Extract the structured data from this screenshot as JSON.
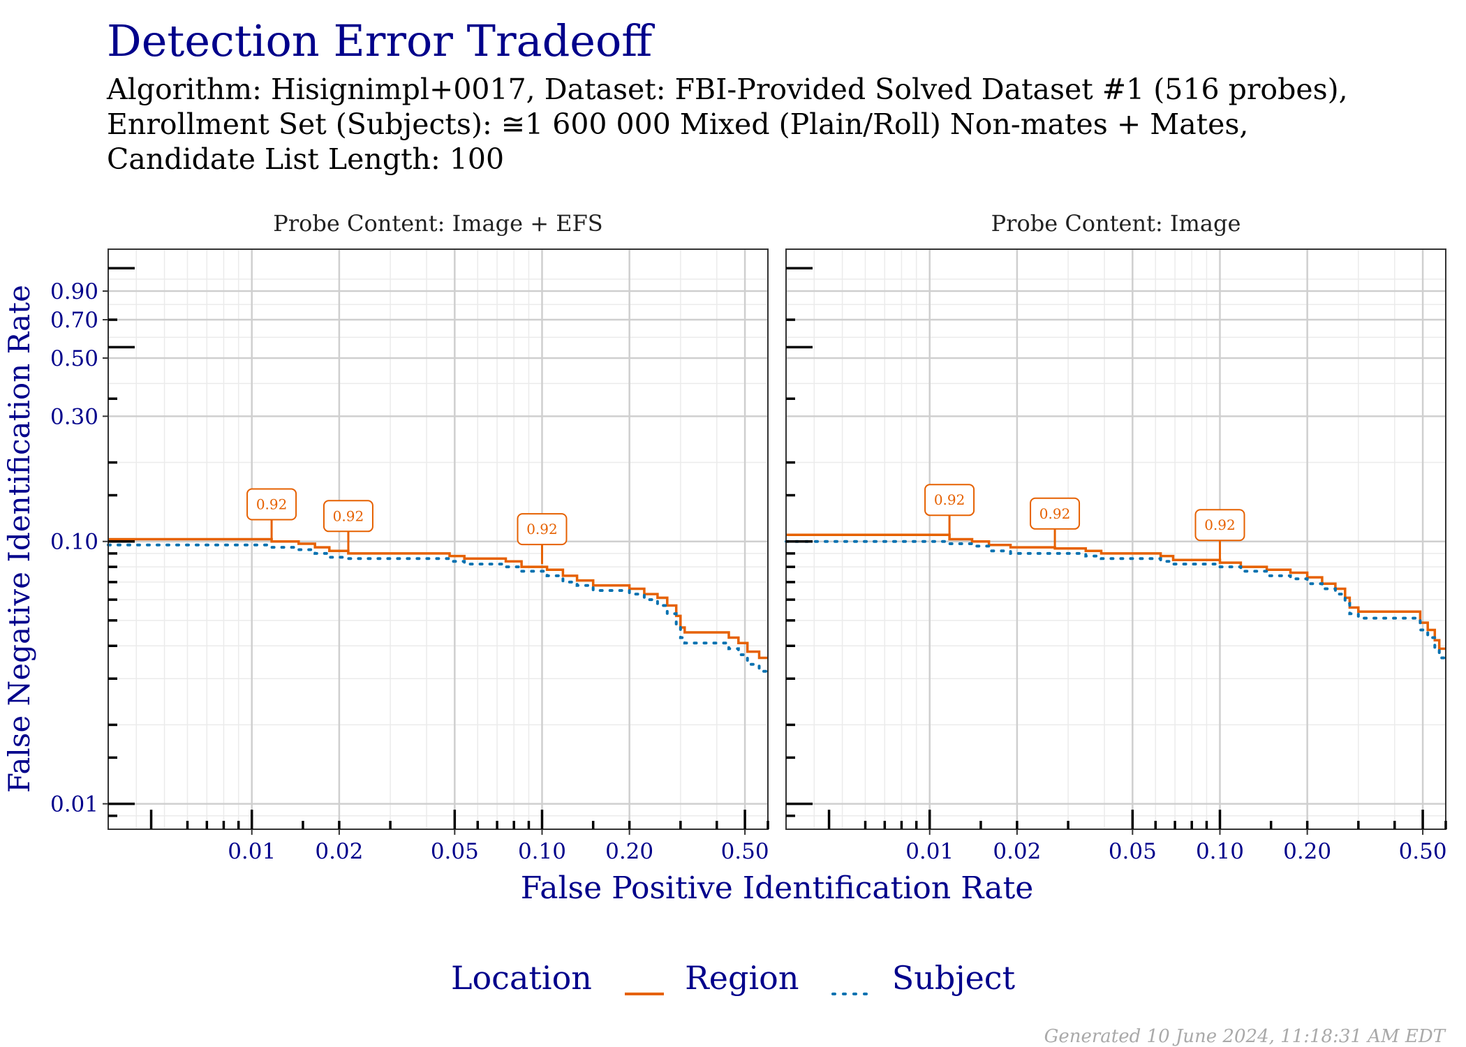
{
  "title": "Detection Error Tradeoff",
  "subtitle_lines": [
    "Algorithm: Hisignimpl+0017, Dataset: FBI-Provided Solved Dataset #1 (516 probes),",
    "Enrollment Set (Subjects):  ≅1 600 000 Mixed (Plain/Roll) Non-mates + Mates,",
    "Candidate List Length: 100"
  ],
  "footer": "Generated 10 June 2024, 11:18:31 AM EDT",
  "legend": {
    "title": "Location",
    "items": [
      {
        "label": "Region",
        "color": "#e66101",
        "style": "solid"
      },
      {
        "label": "Subject",
        "color": "#0571b0",
        "style": "dotted"
      }
    ]
  },
  "chart_data": [
    {
      "type": "line",
      "panel_title": "Probe Content: Image + EFS",
      "xlabel": "False Positive Identification Rate",
      "ylabel": "False Negative Identification Rate",
      "x_scale": "log",
      "y_scale": "log",
      "xlim": [
        0.0032,
        0.6
      ],
      "ylim": [
        0.008,
        1.3
      ],
      "x_ticks": [
        "0.01",
        "0.02",
        "0.05",
        "0.10",
        "0.20",
        "0.50"
      ],
      "y_ticks": [
        "0.01",
        "0.10",
        "0.30",
        "0.50",
        "0.70",
        "0.90"
      ],
      "grid": true,
      "series": [
        {
          "name": "Region",
          "color": "#e66101",
          "points": [
            [
              0.0032,
              0.102
            ],
            [
              0.0117,
              0.102
            ],
            [
              0.0117,
              0.1
            ],
            [
              0.0145,
              0.1
            ],
            [
              0.0145,
              0.098
            ],
            [
              0.0165,
              0.098
            ],
            [
              0.0165,
              0.095
            ],
            [
              0.0185,
              0.095
            ],
            [
              0.0185,
              0.092
            ],
            [
              0.0215,
              0.092
            ],
            [
              0.0215,
              0.09
            ],
            [
              0.048,
              0.09
            ],
            [
              0.048,
              0.088
            ],
            [
              0.054,
              0.088
            ],
            [
              0.054,
              0.086
            ],
            [
              0.075,
              0.086
            ],
            [
              0.075,
              0.084
            ],
            [
              0.085,
              0.084
            ],
            [
              0.085,
              0.08
            ],
            [
              0.104,
              0.08
            ],
            [
              0.104,
              0.078
            ],
            [
              0.118,
              0.078
            ],
            [
              0.118,
              0.074
            ],
            [
              0.132,
              0.074
            ],
            [
              0.132,
              0.071
            ],
            [
              0.15,
              0.071
            ],
            [
              0.15,
              0.068
            ],
            [
              0.2,
              0.068
            ],
            [
              0.2,
              0.066
            ],
            [
              0.225,
              0.066
            ],
            [
              0.225,
              0.063
            ],
            [
              0.25,
              0.063
            ],
            [
              0.25,
              0.061
            ],
            [
              0.27,
              0.061
            ],
            [
              0.27,
              0.057
            ],
            [
              0.29,
              0.057
            ],
            [
              0.29,
              0.052
            ],
            [
              0.3,
              0.052
            ],
            [
              0.3,
              0.047
            ],
            [
              0.31,
              0.047
            ],
            [
              0.31,
              0.045
            ],
            [
              0.44,
              0.045
            ],
            [
              0.44,
              0.043
            ],
            [
              0.475,
              0.043
            ],
            [
              0.475,
              0.041
            ],
            [
              0.51,
              0.041
            ],
            [
              0.51,
              0.038
            ],
            [
              0.56,
              0.038
            ],
            [
              0.56,
              0.036
            ],
            [
              0.6,
              0.036
            ]
          ]
        },
        {
          "name": "Subject",
          "color": "#0571b0",
          "points": [
            [
              0.0032,
              0.097
            ],
            [
              0.0117,
              0.097
            ],
            [
              0.0117,
              0.095
            ],
            [
              0.0145,
              0.095
            ],
            [
              0.0145,
              0.093
            ],
            [
              0.0165,
              0.093
            ],
            [
              0.0165,
              0.09
            ],
            [
              0.0185,
              0.09
            ],
            [
              0.0185,
              0.087
            ],
            [
              0.0215,
              0.087
            ],
            [
              0.0215,
              0.086
            ],
            [
              0.048,
              0.086
            ],
            [
              0.048,
              0.084
            ],
            [
              0.054,
              0.084
            ],
            [
              0.054,
              0.082
            ],
            [
              0.075,
              0.082
            ],
            [
              0.075,
              0.08
            ],
            [
              0.085,
              0.08
            ],
            [
              0.085,
              0.077
            ],
            [
              0.104,
              0.077
            ],
            [
              0.104,
              0.074
            ],
            [
              0.118,
              0.074
            ],
            [
              0.118,
              0.07
            ],
            [
              0.132,
              0.07
            ],
            [
              0.132,
              0.068
            ],
            [
              0.15,
              0.068
            ],
            [
              0.15,
              0.065
            ],
            [
              0.2,
              0.065
            ],
            [
              0.2,
              0.063
            ],
            [
              0.225,
              0.063
            ],
            [
              0.225,
              0.06
            ],
            [
              0.25,
              0.06
            ],
            [
              0.25,
              0.057
            ],
            [
              0.27,
              0.057
            ],
            [
              0.27,
              0.053
            ],
            [
              0.29,
              0.053
            ],
            [
              0.29,
              0.048
            ],
            [
              0.3,
              0.048
            ],
            [
              0.3,
              0.043
            ],
            [
              0.31,
              0.043
            ],
            [
              0.31,
              0.041
            ],
            [
              0.44,
              0.041
            ],
            [
              0.44,
              0.039
            ],
            [
              0.475,
              0.039
            ],
            [
              0.475,
              0.037
            ],
            [
              0.51,
              0.037
            ],
            [
              0.51,
              0.034
            ],
            [
              0.56,
              0.034
            ],
            [
              0.56,
              0.032
            ],
            [
              0.6,
              0.032
            ]
          ]
        }
      ],
      "annotations": [
        {
          "x": 0.0117,
          "y": 0.102,
          "label": "0.92"
        },
        {
          "x": 0.0215,
          "y": 0.092,
          "label": "0.92"
        },
        {
          "x": 0.1,
          "y": 0.082,
          "label": "0.92"
        }
      ]
    },
    {
      "type": "line",
      "panel_title": "Probe Content: Image",
      "xlabel": "False Positive Identification Rate",
      "ylabel": "False Negative Identification Rate",
      "x_scale": "log",
      "y_scale": "log",
      "xlim": [
        0.0032,
        0.6
      ],
      "ylim": [
        0.008,
        1.3
      ],
      "x_ticks": [
        "0.01",
        "0.02",
        "0.05",
        "0.10",
        "0.20",
        "0.50"
      ],
      "y_ticks": [
        "0.01",
        "0.10",
        "0.30",
        "0.50",
        "0.70",
        "0.90"
      ],
      "grid": true,
      "series": [
        {
          "name": "Region",
          "color": "#e66101",
          "points": [
            [
              0.0032,
              0.106
            ],
            [
              0.0117,
              0.106
            ],
            [
              0.0117,
              0.102
            ],
            [
              0.014,
              0.102
            ],
            [
              0.014,
              0.1
            ],
            [
              0.016,
              0.1
            ],
            [
              0.016,
              0.097
            ],
            [
              0.019,
              0.097
            ],
            [
              0.019,
              0.095
            ],
            [
              0.027,
              0.095
            ],
            [
              0.027,
              0.094
            ],
            [
              0.0345,
              0.094
            ],
            [
              0.0345,
              0.092
            ],
            [
              0.039,
              0.092
            ],
            [
              0.039,
              0.09
            ],
            [
              0.0625,
              0.09
            ],
            [
              0.0625,
              0.088
            ],
            [
              0.069,
              0.088
            ],
            [
              0.069,
              0.085
            ],
            [
              0.1,
              0.085
            ],
            [
              0.1,
              0.083
            ],
            [
              0.118,
              0.083
            ],
            [
              0.118,
              0.08
            ],
            [
              0.145,
              0.08
            ],
            [
              0.145,
              0.078
            ],
            [
              0.175,
              0.078
            ],
            [
              0.175,
              0.076
            ],
            [
              0.2,
              0.076
            ],
            [
              0.2,
              0.073
            ],
            [
              0.225,
              0.073
            ],
            [
              0.225,
              0.069
            ],
            [
              0.25,
              0.069
            ],
            [
              0.25,
              0.066
            ],
            [
              0.27,
              0.066
            ],
            [
              0.27,
              0.061
            ],
            [
              0.28,
              0.061
            ],
            [
              0.28,
              0.056
            ],
            [
              0.3,
              0.056
            ],
            [
              0.3,
              0.054
            ],
            [
              0.49,
              0.054
            ],
            [
              0.49,
              0.049
            ],
            [
              0.52,
              0.049
            ],
            [
              0.52,
              0.046
            ],
            [
              0.55,
              0.046
            ],
            [
              0.55,
              0.042
            ],
            [
              0.57,
              0.042
            ],
            [
              0.57,
              0.039
            ],
            [
              0.6,
              0.039
            ]
          ]
        },
        {
          "name": "Subject",
          "color": "#0571b0",
          "points": [
            [
              0.0032,
              0.1
            ],
            [
              0.0117,
              0.1
            ],
            [
              0.0117,
              0.098
            ],
            [
              0.014,
              0.098
            ],
            [
              0.014,
              0.096
            ],
            [
              0.016,
              0.096
            ],
            [
              0.016,
              0.092
            ],
            [
              0.019,
              0.092
            ],
            [
              0.019,
              0.09
            ],
            [
              0.0345,
              0.09
            ],
            [
              0.0345,
              0.088
            ],
            [
              0.039,
              0.088
            ],
            [
              0.039,
              0.086
            ],
            [
              0.0625,
              0.086
            ],
            [
              0.0625,
              0.084
            ],
            [
              0.069,
              0.084
            ],
            [
              0.069,
              0.082
            ],
            [
              0.1,
              0.082
            ],
            [
              0.1,
              0.08
            ],
            [
              0.118,
              0.08
            ],
            [
              0.118,
              0.077
            ],
            [
              0.145,
              0.077
            ],
            [
              0.145,
              0.074
            ],
            [
              0.175,
              0.074
            ],
            [
              0.175,
              0.072
            ],
            [
              0.2,
              0.072
            ],
            [
              0.2,
              0.069
            ],
            [
              0.225,
              0.069
            ],
            [
              0.225,
              0.066
            ],
            [
              0.25,
              0.066
            ],
            [
              0.25,
              0.063
            ],
            [
              0.27,
              0.063
            ],
            [
              0.27,
              0.058
            ],
            [
              0.28,
              0.058
            ],
            [
              0.28,
              0.053
            ],
            [
              0.3,
              0.053
            ],
            [
              0.3,
              0.051
            ],
            [
              0.49,
              0.051
            ],
            [
              0.49,
              0.046
            ],
            [
              0.52,
              0.046
            ],
            [
              0.52,
              0.043
            ],
            [
              0.55,
              0.043
            ],
            [
              0.55,
              0.039
            ],
            [
              0.57,
              0.039
            ],
            [
              0.57,
              0.036
            ],
            [
              0.6,
              0.036
            ]
          ]
        }
      ],
      "annotations": [
        {
          "x": 0.0117,
          "y": 0.106,
          "label": "0.92"
        },
        {
          "x": 0.027,
          "y": 0.094,
          "label": "0.92"
        },
        {
          "x": 0.1,
          "y": 0.085,
          "label": "0.92"
        }
      ]
    }
  ]
}
